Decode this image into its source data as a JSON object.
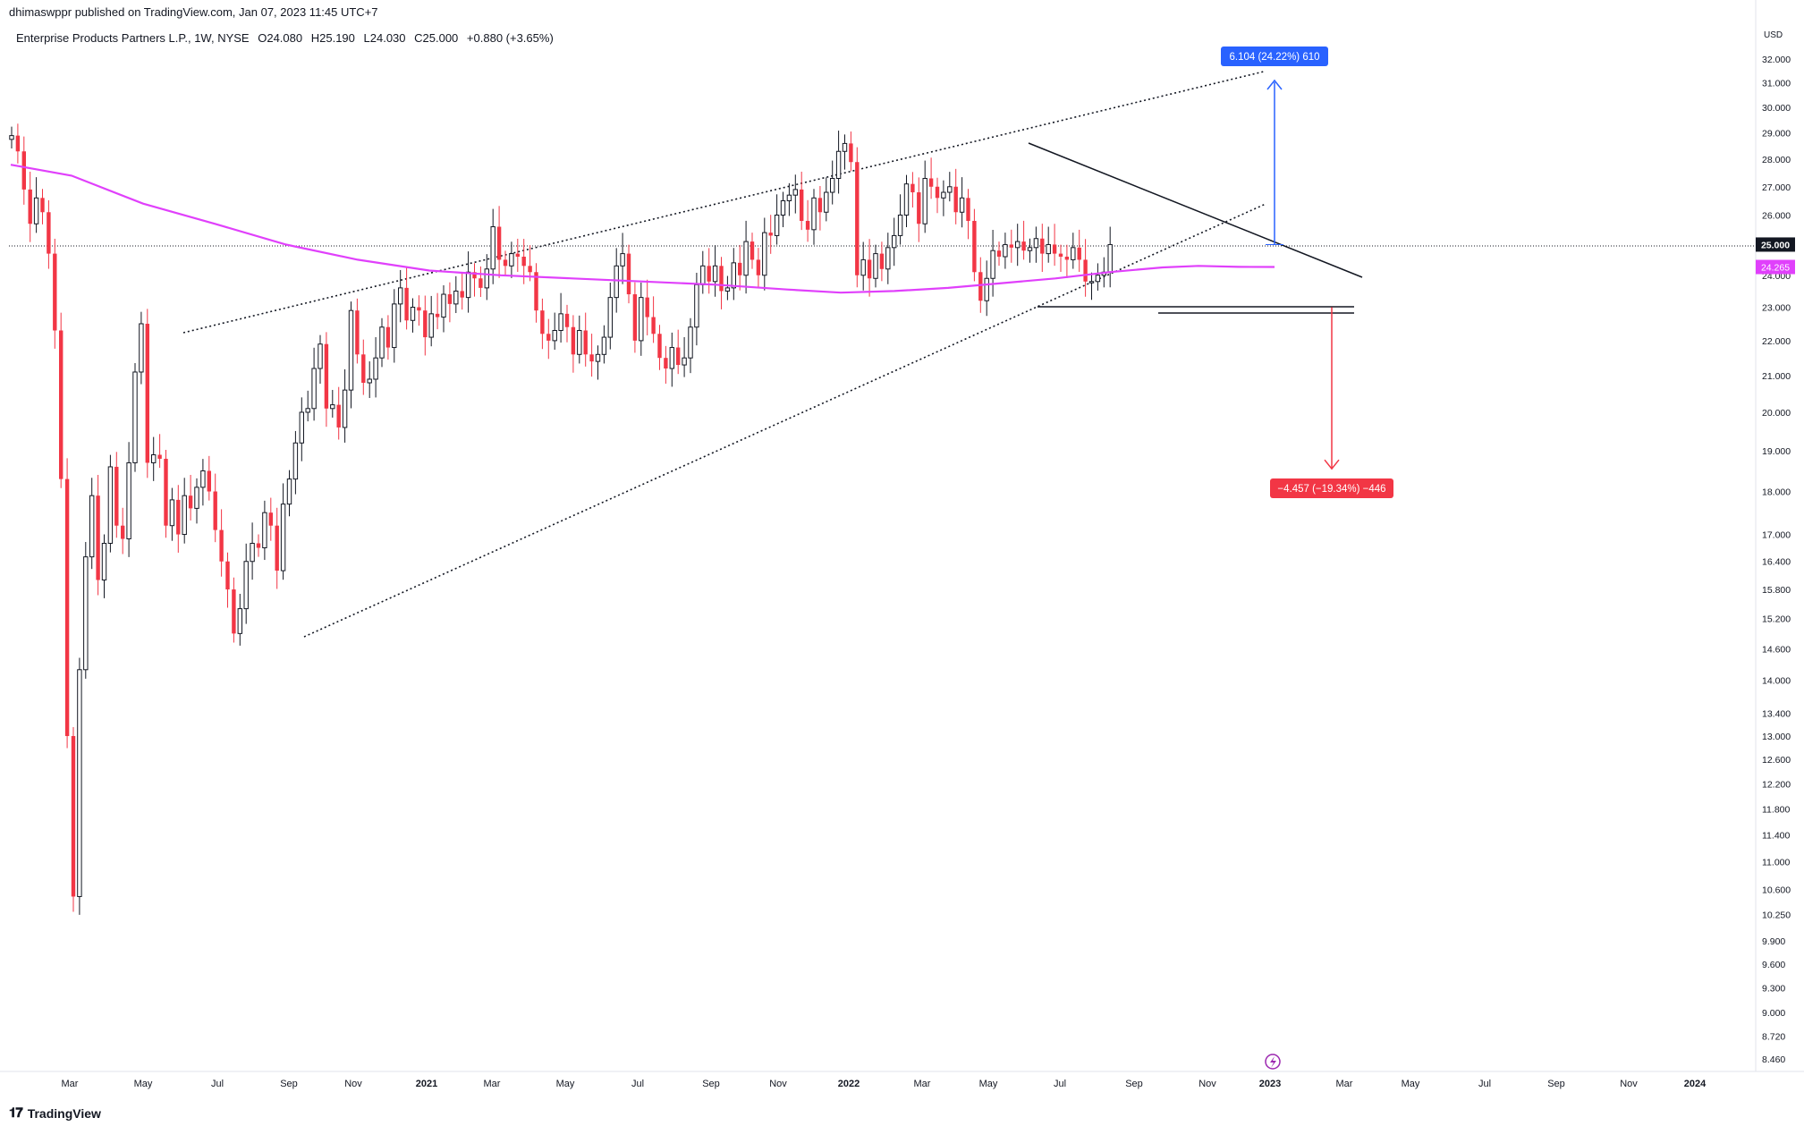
{
  "header": {
    "published": "dhimaswppr published on TradingView.com, Jan 07, 2023 11:45 UTC+7"
  },
  "legend": {
    "symbol": "Enterprise Products Partners L.P., 1W, NYSE",
    "open": "O24.080",
    "high": "H25.190",
    "low": "L24.030",
    "close": "C25.000",
    "change": "+0.880 (+3.65%)"
  },
  "footer": {
    "brand": "TradingView",
    "logo_icon": "tradingview-logo-icon"
  },
  "colors": {
    "up": "#ffffff",
    "up_border": "#131722",
    "down": "#f23645",
    "ma": "#e040fb",
    "target_up": "#2962ff",
    "target_down": "#f23645"
  },
  "chart_data": {
    "type": "candlestick",
    "symbol": "EPD",
    "interval": "1W",
    "y_scale": "log",
    "currency": "USD",
    "x_axis_labels": [
      "Mar",
      "May",
      "Jul",
      "Sep",
      "Nov",
      "2021",
      "Mar",
      "May",
      "Jul",
      "Sep",
      "Nov",
      "2022",
      "Mar",
      "May",
      "Jul",
      "Sep",
      "Nov",
      "2023",
      "Mar",
      "May",
      "Jul",
      "Sep",
      "Nov",
      "2024"
    ],
    "y_axis_labels": [
      "32.000",
      "31.000",
      "30.000",
      "29.000",
      "28.000",
      "27.000",
      "26.000",
      "24.000",
      "23.000",
      "22.000",
      "21.000",
      "20.000",
      "19.000",
      "18.000",
      "17.000",
      "16.400",
      "15.800",
      "15.200",
      "14.600",
      "14.000",
      "13.400",
      "13.000",
      "12.600",
      "12.200",
      "11.800",
      "11.400",
      "11.000",
      "10.600",
      "10.250",
      "9.900",
      "9.600",
      "9.300",
      "9.000",
      "8.720",
      "8.460"
    ],
    "y_ticks": [
      32,
      31,
      30,
      29,
      28,
      27,
      26,
      24,
      23,
      22,
      21,
      20,
      19,
      18,
      17,
      16.4,
      15.8,
      15.2,
      14.6,
      14,
      13.4,
      13,
      12.6,
      12.2,
      11.8,
      11.4,
      11,
      10.6,
      10.25,
      9.9,
      9.6,
      9.3,
      9,
      8.72,
      8.46
    ],
    "axis_unit": "USD",
    "last_price": {
      "value": 25.0,
      "label": "25.000"
    },
    "ma_value": {
      "value": 24.265,
      "label": "24.265"
    },
    "target_up": {
      "label": "6.104 (24.22%) 610",
      "from": 25.0,
      "to": 31.1
    },
    "target_down": {
      "label": "−4.457 (−19.34%) −446",
      "from": 23.0,
      "to": 18.55
    },
    "closes": [
      28.9,
      28.3,
      26.9,
      25.7,
      26.6,
      26.1,
      24.7,
      22.3,
      18.3,
      13.0,
      10.5,
      14.2,
      16.5,
      17.9,
      16.0,
      16.8,
      18.6,
      17.2,
      16.9,
      18.7,
      21.1,
      22.5,
      18.7,
      18.9,
      18.8,
      17.2,
      17.8,
      17.0,
      17.9,
      17.6,
      18.1,
      18.5,
      18.0,
      17.1,
      16.4,
      15.8,
      14.9,
      15.4,
      16.4,
      16.8,
      16.7,
      17.5,
      17.2,
      16.2,
      17.7,
      18.3,
      19.2,
      20.0,
      20.1,
      21.2,
      21.9,
      20.1,
      20.2,
      19.6,
      20.6,
      22.9,
      21.6,
      20.8,
      20.9,
      21.5,
      22.4,
      21.8,
      23.1,
      23.6,
      22.6,
      23.0,
      22.9,
      22.1,
      22.8,
      22.7,
      23.4,
      23.1,
      23.5,
      23.3,
      24.1,
      23.9,
      23.6,
      24.2,
      25.6,
      24.5,
      24.3,
      24.7,
      24.6,
      24.3,
      24.1,
      22.9,
      22.2,
      22.0,
      22.3,
      22.8,
      22.4,
      21.6,
      22.3,
      21.6,
      21.4,
      21.6,
      22.1,
      23.3,
      24.3,
      24.7,
      23.4,
      22.0,
      23.3,
      22.7,
      22.2,
      21.5,
      21.2,
      21.8,
      21.3,
      21.5,
      22.4,
      23.7,
      24.3,
      23.8,
      24.3,
      23.5,
      23.6,
      24.4,
      24.0,
      25.1,
      24.5,
      24.0,
      25.4,
      25.3,
      26.0,
      26.5,
      26.7,
      26.9,
      25.8,
      25.5,
      26.6,
      26.1,
      26.8,
      27.3,
      28.3,
      28.6,
      27.9,
      24.0,
      24.5,
      23.9,
      24.7,
      24.2,
      24.9,
      25.3,
      26.0,
      27.1,
      26.8,
      25.7,
      27.3,
      27.0,
      26.6,
      26.8,
      27.0,
      26.1,
      26.6,
      25.8,
      24.1,
      23.2,
      23.9,
      24.8,
      24.6,
      25.0,
      24.9,
      25.1,
      24.8,
      24.9,
      25.2,
      24.7,
      25.0,
      24.7,
      24.6,
      24.5,
      24.9,
      24.5,
      23.8,
      23.8,
      24.0,
      24.1,
      25.0
    ]
  }
}
